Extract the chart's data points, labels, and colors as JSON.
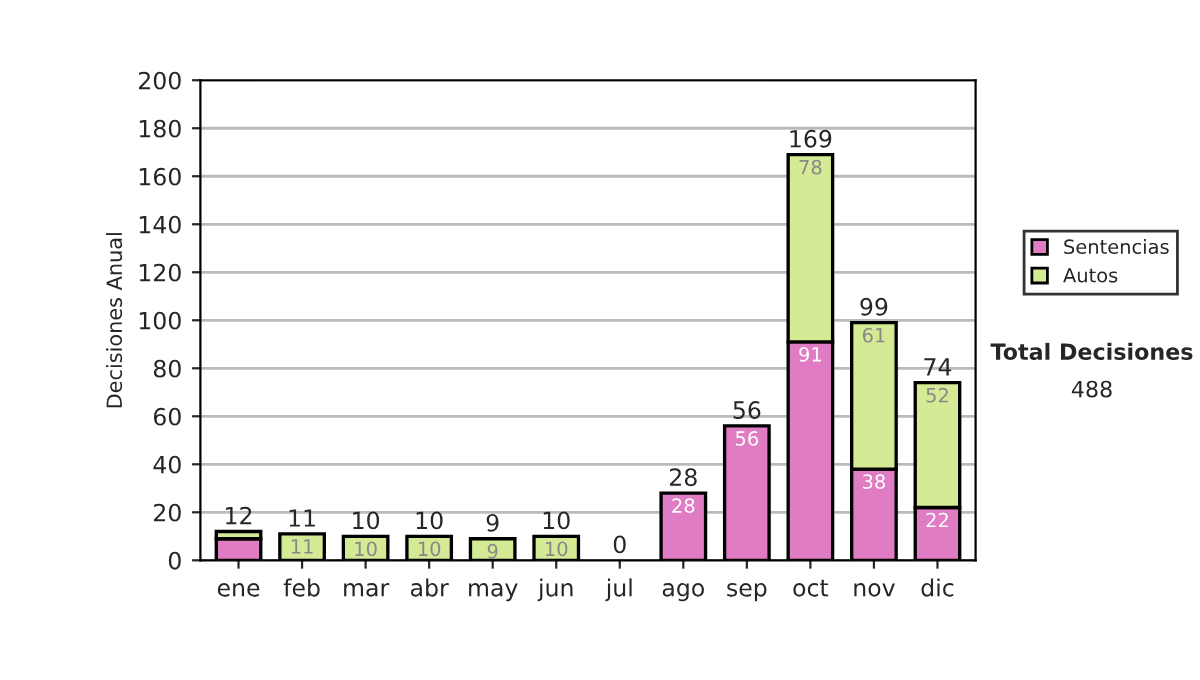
{
  "chart_data": {
    "type": "bar",
    "stacked": true,
    "ylabel": "Decisiones Anual",
    "categories": [
      "ene",
      "feb",
      "mar",
      "abr",
      "may",
      "jun",
      "jul",
      "ago",
      "sep",
      "oct",
      "nov",
      "dic"
    ],
    "series": [
      {
        "name": "Sentencias",
        "color": "#e07cc4",
        "values": [
          9,
          0,
          0,
          0,
          0,
          0,
          0,
          28,
          56,
          91,
          38,
          22
        ],
        "value_labels": [
          null,
          null,
          null,
          null,
          null,
          null,
          null,
          "28",
          "56",
          "91",
          "38",
          "22"
        ]
      },
      {
        "name": "Autos",
        "color": "#d4ea94",
        "values": [
          3,
          11,
          10,
          10,
          9,
          10,
          0,
          0,
          0,
          78,
          61,
          52
        ],
        "value_labels": [
          null,
          "11",
          "10",
          "10",
          "9",
          "10",
          null,
          null,
          null,
          "78",
          "61",
          "52"
        ]
      }
    ],
    "totals": [
      "12",
      "11",
      "10",
      "10",
      "9",
      "10",
      "0",
      "28",
      "56",
      "169",
      "99",
      "74"
    ],
    "ylim": [
      0,
      200
    ],
    "yticks": [
      0,
      20,
      40,
      60,
      80,
      100,
      120,
      140,
      160,
      180,
      200
    ],
    "grid": "y",
    "legend": "right",
    "annotations": [
      "Total Decisiones",
      "488"
    ]
  }
}
